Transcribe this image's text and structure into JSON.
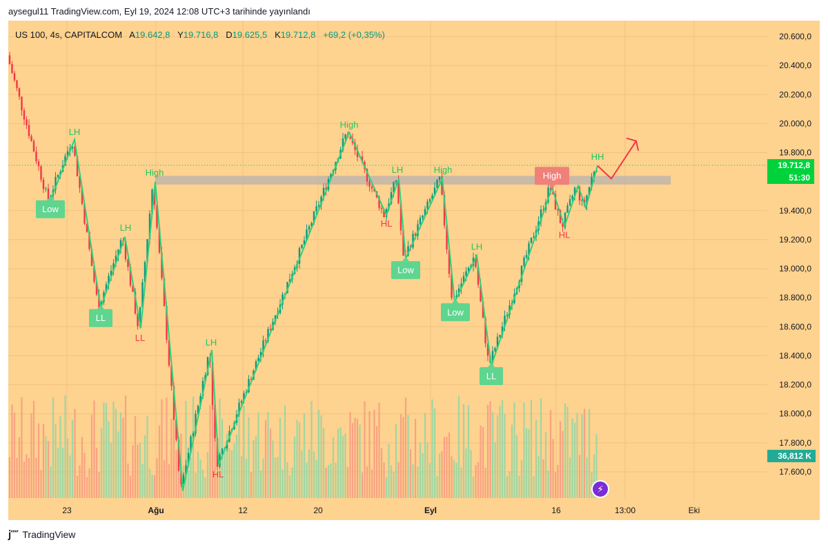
{
  "header": {
    "text": "aysegul11 TradingView.com, Eyl 19, 2024 12:08 UTC+3 tarihinde yayınlandı"
  },
  "legend": {
    "symbol": "US 100, 4s, CAPITALCOM",
    "o_label": "A",
    "o_value": "19.642,8",
    "h_label": "Y",
    "h_value": "19.716,8",
    "l_label": "D",
    "l_value": "19.625,5",
    "c_label": "K",
    "c_value": "19.712,8",
    "change": "+69,2 (+0,35%)"
  },
  "price_tag": {
    "value": "19.712,8",
    "countdown": "51:30"
  },
  "volume_tag": {
    "value": "36,812 K"
  },
  "footer": {
    "brand": "TradingView"
  },
  "colors": {
    "background": "#fed28f",
    "up": "#089981",
    "down": "#f23645",
    "zigzag": "#2fd07a",
    "label_green": "#5fd58f",
    "label_red": "#f0807a",
    "price_tag": "#00d23c"
  },
  "chart_data": {
    "type": "candlestick",
    "ylim": [
      17450,
      20700
    ],
    "y_ticks": [
      "20.600,0",
      "20.400,0",
      "20.200,0",
      "20.000,0",
      "19.800,0",
      "19.400,0",
      "19.200,0",
      "19.000,0",
      "18.800,0",
      "18.600,0",
      "18.400,0",
      "18.200,0",
      "18.000,0",
      "17.800,0",
      "17.600,0"
    ],
    "x_ticks": [
      "23",
      "Ağu",
      "12",
      "20",
      "Eyl",
      "16",
      "13:00",
      "Eki"
    ],
    "resistance_zone": [
      19580,
      19640
    ],
    "zigzag": [
      {
        "x": 73,
        "y": 19470
      },
      {
        "x": 108,
        "y": 19890
      },
      {
        "x": 146,
        "y": 18730
      },
      {
        "x": 181,
        "y": 19220
      },
      {
        "x": 204,
        "y": 18590
      },
      {
        "x": 225,
        "y": 19600
      },
      {
        "x": 265,
        "y": 17470
      },
      {
        "x": 307,
        "y": 18440
      },
      {
        "x": 317,
        "y": 17650
      },
      {
        "x": 506,
        "y": 19940
      },
      {
        "x": 560,
        "y": 19370
      },
      {
        "x": 578,
        "y": 19620
      },
      {
        "x": 588,
        "y": 19070
      },
      {
        "x": 641,
        "y": 19620
      },
      {
        "x": 659,
        "y": 18770
      },
      {
        "x": 691,
        "y": 19090
      },
      {
        "x": 712,
        "y": 18330
      },
      {
        "x": 800,
        "y": 19560
      },
      {
        "x": 818,
        "y": 19290
      },
      {
        "x": 838,
        "y": 19570
      },
      {
        "x": 849,
        "y": 19420
      },
      {
        "x": 866,
        "y": 19710
      }
    ],
    "projection": [
      {
        "x": 866,
        "y": 19710
      },
      {
        "x": 886,
        "y": 19620
      },
      {
        "x": 922,
        "y": 19880
      }
    ],
    "annotations": [
      {
        "text": "LH",
        "x": 108,
        "y": 19940,
        "style": "plain-green"
      },
      {
        "text": "Low",
        "x": 73,
        "y": 19410,
        "style": "box-green"
      },
      {
        "text": "LH",
        "x": 182,
        "y": 19280,
        "style": "plain-green"
      },
      {
        "text": "LL",
        "x": 146,
        "y": 18660,
        "style": "box-green"
      },
      {
        "text": "LL",
        "x": 203,
        "y": 18520,
        "style": "plain-red"
      },
      {
        "text": "High",
        "x": 224,
        "y": 19660,
        "style": "plain-green"
      },
      {
        "text": "LH",
        "x": 306,
        "y": 18490,
        "style": "plain-green"
      },
      {
        "text": "HL",
        "x": 316,
        "y": 17580,
        "style": "plain-red"
      },
      {
        "text": "High",
        "x": 506,
        "y": 19990,
        "style": "plain-green"
      },
      {
        "text": "LH",
        "x": 576,
        "y": 19680,
        "style": "plain-green"
      },
      {
        "text": "HL",
        "x": 560,
        "y": 19310,
        "style": "plain-red"
      },
      {
        "text": "Low",
        "x": 588,
        "y": 18990,
        "style": "box-green"
      },
      {
        "text": "High",
        "x": 642,
        "y": 19680,
        "style": "plain-green"
      },
      {
        "text": "LH",
        "x": 691,
        "y": 19150,
        "style": "plain-green"
      },
      {
        "text": "Low",
        "x": 660,
        "y": 18700,
        "style": "box-green"
      },
      {
        "text": "LL",
        "x": 712,
        "y": 18260,
        "style": "box-green"
      },
      {
        "text": "High",
        "x": 800,
        "y": 19640,
        "style": "box-red"
      },
      {
        "text": "HL",
        "x": 818,
        "y": 19230,
        "style": "plain-red"
      },
      {
        "text": "HH",
        "x": 866,
        "y": 19770,
        "style": "plain-green"
      }
    ]
  }
}
